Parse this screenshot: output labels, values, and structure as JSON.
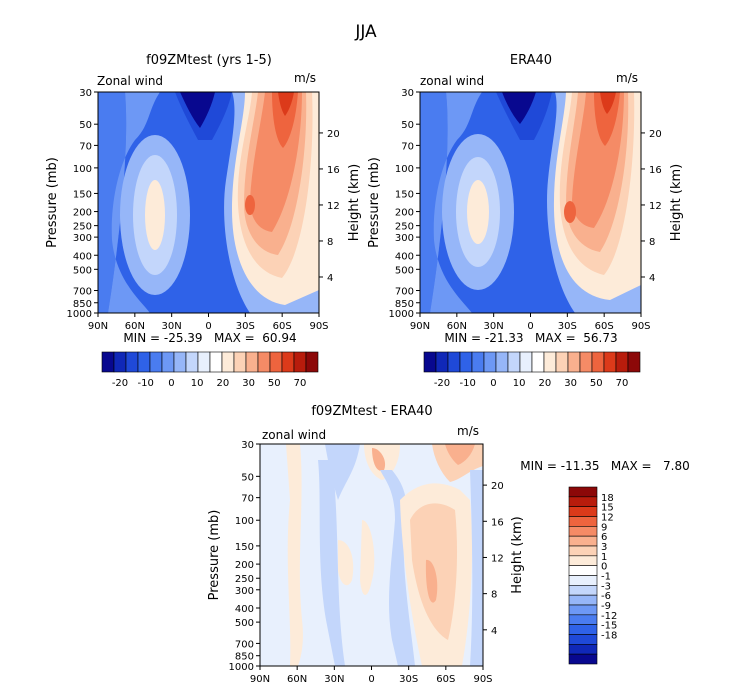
{
  "figure_title": "JJA",
  "colors": {
    "blue_ramp": [
      "#08088f",
      "#1028b8",
      "#1f49d8",
      "#2f62e8",
      "#4a7cf0",
      "#6d98f5",
      "#96b6f8",
      "#c3d6fb",
      "#e8f0fd"
    ],
    "red_ramp": [
      "#fdebd9",
      "#fcd2b6",
      "#f9b08e",
      "#f58b66",
      "#ee643e",
      "#dc3a1a",
      "#b81c0c",
      "#8c0808"
    ],
    "zero": "#ffffff"
  },
  "chart_data": [
    {
      "type": "heatmap",
      "title": "f09ZMtest (yrs 1-5)",
      "corner_left": "Zonal wind",
      "corner_right": "m/s",
      "ylabel": "Pressure (mb)",
      "ylabel_right": "Height (km)",
      "x_ticks": [
        "90N",
        "60N",
        "30N",
        "0",
        "30S",
        "60S",
        "90S"
      ],
      "y_ticks": [
        "30",
        "50",
        "70",
        "100",
        "150",
        "200",
        "250",
        "300",
        "400",
        "500",
        "700",
        "850",
        "1000"
      ],
      "y_ticks_right": [
        "20",
        "16",
        "12",
        "8",
        "4"
      ],
      "stats": "MIN = -25.39   MAX =  60.94",
      "min": -25.39,
      "max": 60.94,
      "colorbar_labels": [
        "-20",
        "-10",
        "0",
        "10",
        "20",
        "30",
        "50",
        "70"
      ]
    },
    {
      "type": "heatmap",
      "title": "ERA40",
      "corner_left": "zonal wind",
      "corner_right": "m/s",
      "ylabel": "Pressure (mb)",
      "ylabel_right": "Height (km)",
      "x_ticks": [
        "90N",
        "60N",
        "30N",
        "0",
        "30S",
        "60S",
        "90S"
      ],
      "y_ticks": [
        "30",
        "50",
        "70",
        "100",
        "150",
        "200",
        "250",
        "300",
        "400",
        "500",
        "700",
        "850",
        "1000"
      ],
      "y_ticks_right": [
        "20",
        "16",
        "12",
        "8",
        "4"
      ],
      "stats": "MIN = -21.33   MAX =  56.73",
      "min": -21.33,
      "max": 56.73,
      "colorbar_labels": [
        "-20",
        "-10",
        "0",
        "10",
        "20",
        "30",
        "50",
        "70"
      ]
    },
    {
      "type": "heatmap",
      "title": "f09ZMtest - ERA40",
      "corner_left": "zonal wind",
      "corner_right": "m/s",
      "ylabel": "Pressure (mb)",
      "ylabel_right": "Height (km)",
      "x_ticks": [
        "90N",
        "60N",
        "30N",
        "0",
        "30S",
        "60S",
        "90S"
      ],
      "y_ticks": [
        "30",
        "50",
        "70",
        "100",
        "150",
        "200",
        "250",
        "300",
        "400",
        "500",
        "700",
        "850",
        "1000"
      ],
      "y_ticks_right": [
        "20",
        "16",
        "12",
        "8",
        "4"
      ],
      "stats": "MIN = -11.35   MAX =   7.80",
      "min": -11.35,
      "max": 7.8,
      "colorbar_labels": [
        "18",
        "15",
        "12",
        "9",
        "6",
        "3",
        "1",
        "0",
        "-1",
        "-3",
        "-6",
        "-9",
        "-12",
        "-15",
        "-18"
      ]
    }
  ]
}
